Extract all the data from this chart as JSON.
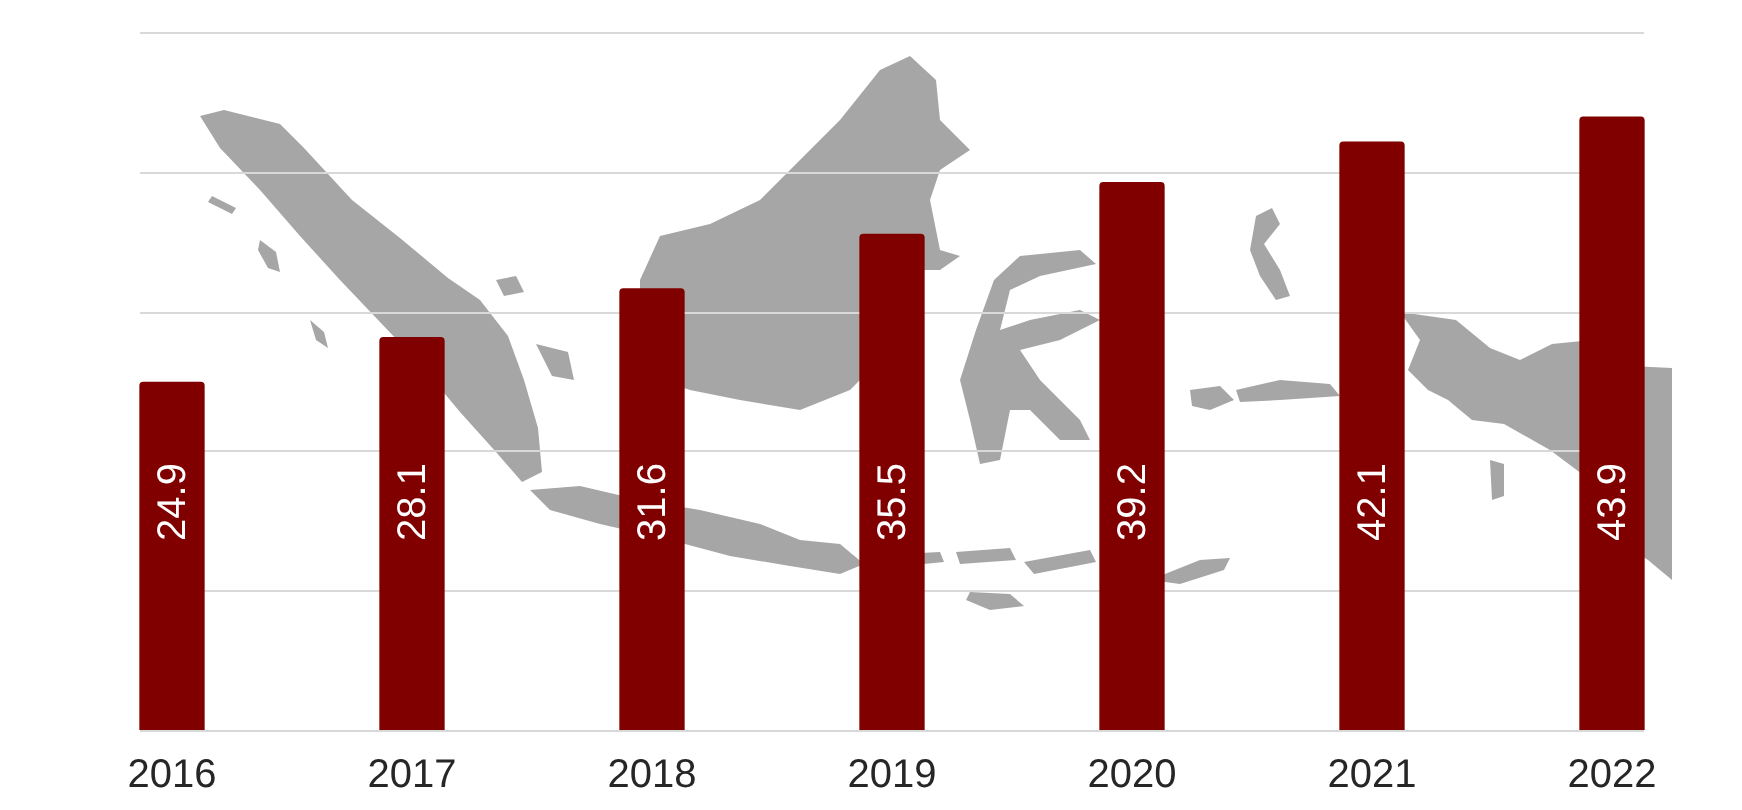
{
  "chart_data": {
    "type": "bar",
    "categories": [
      "2016",
      "2017",
      "2018",
      "2019",
      "2020",
      "2021",
      "2022"
    ],
    "values": [
      24.9,
      28.1,
      31.6,
      35.5,
      39.2,
      42.1,
      43.9
    ],
    "color": "#800000",
    "ylim": [
      0,
      50
    ],
    "yticks": [
      0,
      10,
      20,
      30,
      40,
      50
    ],
    "grid": "y",
    "tick_labels": "x",
    "data_labels": true
  }
}
